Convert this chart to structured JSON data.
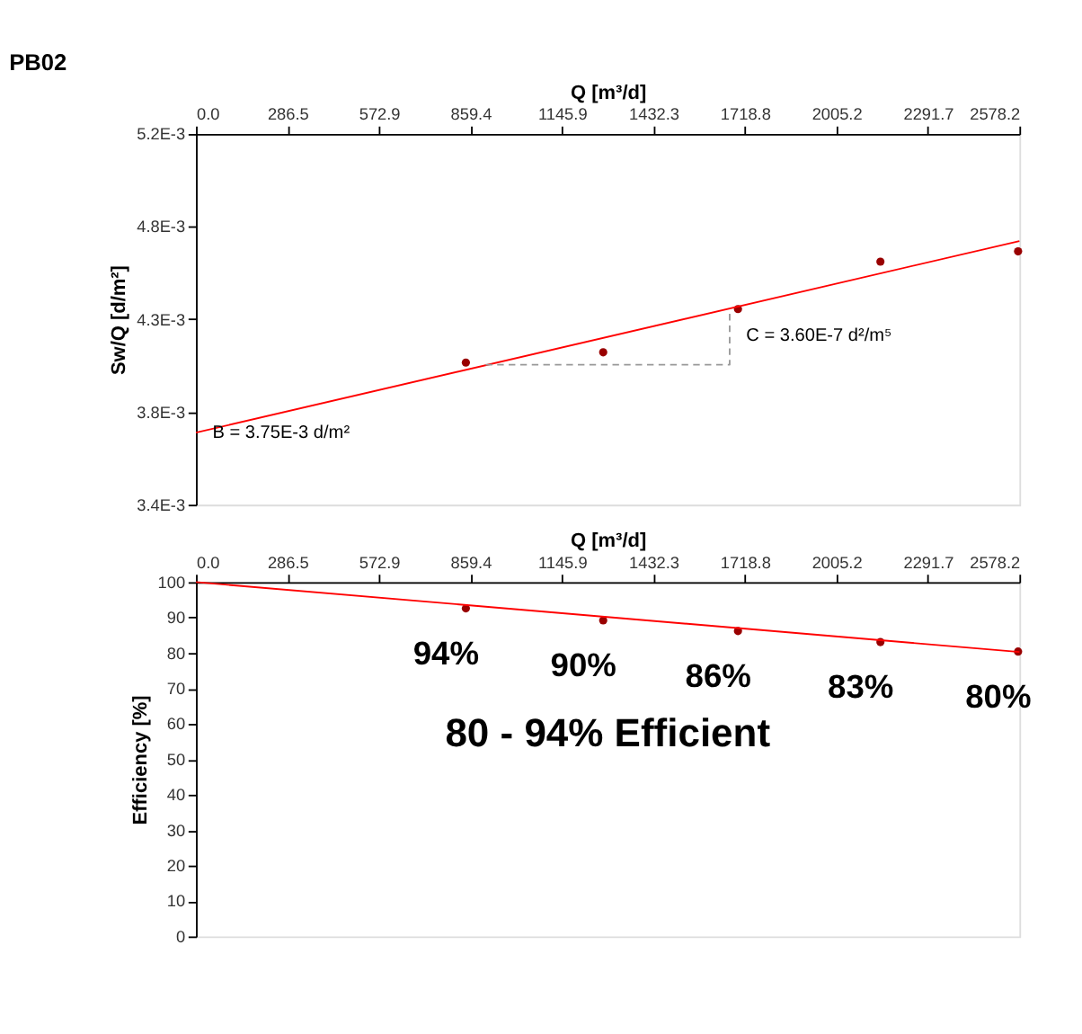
{
  "chart_data": [
    {
      "type": "scatter",
      "title": "PB02",
      "xlabel": "Q [m³/d]",
      "ylabel": "Sw/Q [d/m²]",
      "grid": false,
      "xlim": [
        0,
        2578.2
      ],
      "xticks": [
        {
          "value": 0,
          "label": "0.0"
        },
        {
          "value": 286.5,
          "label": "286.5"
        },
        {
          "value": 572.9,
          "label": "572.9"
        },
        {
          "value": 859.4,
          "label": "859.4"
        },
        {
          "value": 1145.9,
          "label": "1145.9"
        },
        {
          "value": 1432.3,
          "label": "1432.3"
        },
        {
          "value": 1718.8,
          "label": "1718.8"
        },
        {
          "value": 2005.2,
          "label": "2005.2"
        },
        {
          "value": 2291.7,
          "label": "2291.7"
        },
        {
          "value": 2578.2,
          "label": "2578.2"
        }
      ],
      "ylim": [
        0.0034,
        0.0052
      ],
      "yticks": [
        {
          "value": 0.0034,
          "label": "3.4E-3"
        },
        {
          "value": 0.00385,
          "label": "3.8E-3"
        },
        {
          "value": 0.0043,
          "label": "4.3E-3"
        },
        {
          "value": 0.00475,
          "label": "4.8E-3"
        },
        {
          "value": 0.0052,
          "label": "5.2E-3"
        }
      ],
      "series": [
        {
          "marker": "circle",
          "color": "#990000",
          "x": [
            845,
            1275,
            1697,
            2143,
            2574
          ],
          "values": [
            0.00409,
            0.00414,
            0.00435,
            0.00458,
            0.00463
          ]
        },
        {
          "type": "line",
          "marker": "none",
          "line_style": "solid",
          "color": "#ff0000",
          "x": [
            0,
            2578.2
          ],
          "values": [
            0.00375,
            0.00468
          ]
        },
        {
          "type": "line",
          "marker": "none",
          "line_style": "dashed",
          "color": "#999999",
          "x": [
            907,
            1671,
            1671
          ],
          "values": [
            0.00408,
            0.00408,
            0.00435
          ]
        }
      ],
      "annotations": [
        {
          "text": "B = 3.75E-3 d/m²",
          "x": 0,
          "y": 0.00375
        },
        {
          "text": "C = 3.60E-7 d²/m⁵",
          "x": 1671,
          "y": 0.00435
        }
      ]
    },
    {
      "type": "scatter",
      "xlabel": "Q [m³/d]",
      "ylabel": "Efficiency [%]",
      "grid": false,
      "xlim": [
        0,
        2578.2
      ],
      "xticks": [
        {
          "value": 0,
          "label": "0.0"
        },
        {
          "value": 286.5,
          "label": "286.5"
        },
        {
          "value": 572.9,
          "label": "572.9"
        },
        {
          "value": 859.4,
          "label": "859.4"
        },
        {
          "value": 1145.9,
          "label": "1145.9"
        },
        {
          "value": 1432.3,
          "label": "1432.3"
        },
        {
          "value": 1718.8,
          "label": "1718.8"
        },
        {
          "value": 2005.2,
          "label": "2005.2"
        },
        {
          "value": 2291.7,
          "label": "2291.7"
        },
        {
          "value": 2578.2,
          "label": "2578.2"
        }
      ],
      "ylim": [
        0,
        100
      ],
      "yticks": [
        0,
        10,
        20,
        30,
        40,
        50,
        60,
        70,
        80,
        90,
        100
      ],
      "series": [
        {
          "marker": "circle",
          "color": "#990000",
          "x": [
            845,
            1275,
            1697,
            2143,
            2574
          ],
          "values": [
            92.6,
            89.2,
            86.2,
            83.1,
            80.4
          ]
        },
        {
          "type": "line",
          "marker": "none",
          "line_style": "solid",
          "color": "#ff0000",
          "x": [
            0,
            2578.2
          ],
          "values": [
            100,
            80.3
          ]
        }
      ],
      "annotations": [
        {
          "text": "94%",
          "x": 845,
          "y": 92.6
        },
        {
          "text": "90%",
          "x": 1275,
          "y": 89.2
        },
        {
          "text": "86%",
          "x": 1697,
          "y": 86.2
        },
        {
          "text": "83%",
          "x": 2143,
          "y": 83.1
        },
        {
          "text": "80%",
          "x": 2574,
          "y": 80.4
        },
        "80 - 94% Efficient"
      ]
    }
  ]
}
